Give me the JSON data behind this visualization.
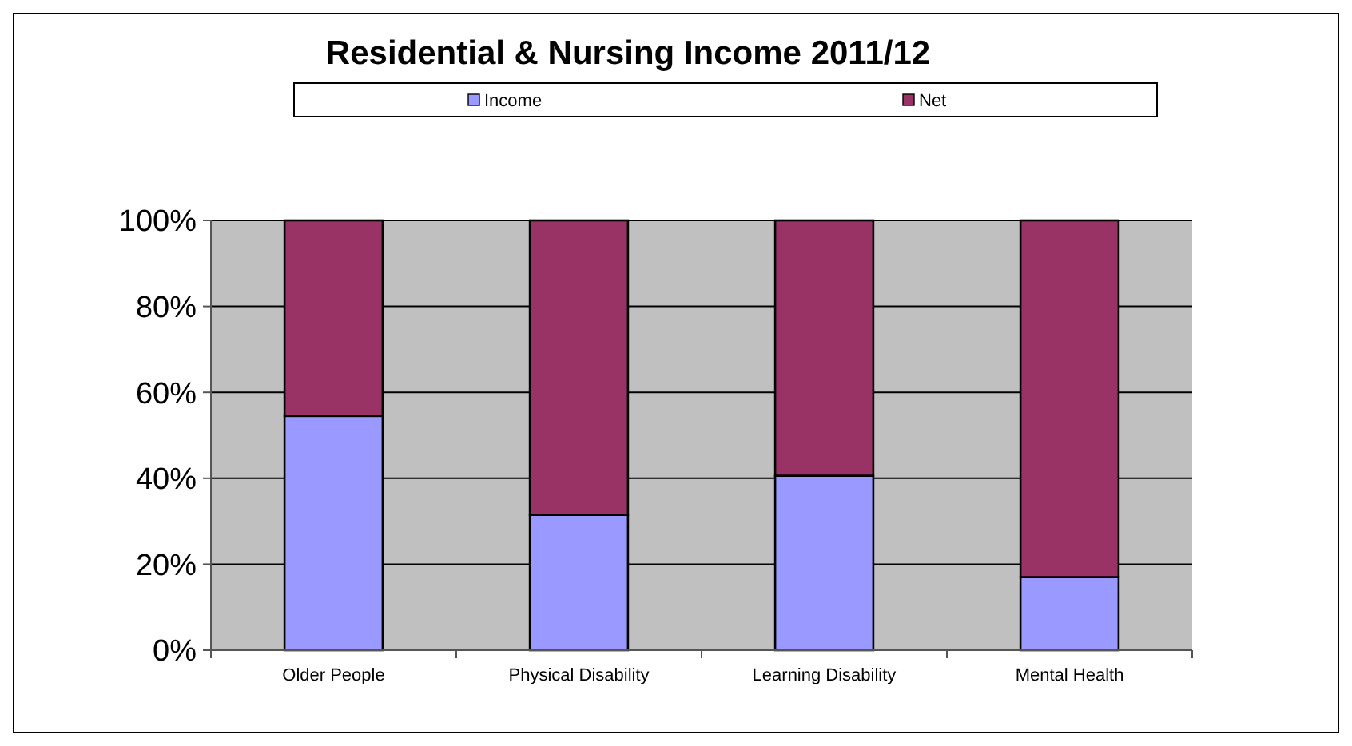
{
  "chart_data": {
    "type": "bar",
    "title": "Residential & Nursing Income 2011/12",
    "categories": [
      "Older People",
      "Physical Disability",
      "Learning Disability",
      "Mental Health"
    ],
    "series": [
      {
        "name": "Income",
        "color": "#9999ff",
        "values": [
          54.5,
          31.5,
          40.6,
          17.0
        ]
      },
      {
        "name": "Net",
        "color": "#993366",
        "values": [
          45.5,
          68.5,
          59.4,
          83.0
        ]
      }
    ],
    "stacked": true,
    "ylim": [
      0,
      100
    ],
    "yticks": [
      {
        "value": 0,
        "label": "0%"
      },
      {
        "value": 20,
        "label": "20%"
      },
      {
        "value": 40,
        "label": "40%"
      },
      {
        "value": 60,
        "label": "60%"
      },
      {
        "value": 80,
        "label": "80%"
      },
      {
        "value": 100,
        "label": "100%"
      }
    ],
    "grid": "y",
    "legend": "top"
  }
}
